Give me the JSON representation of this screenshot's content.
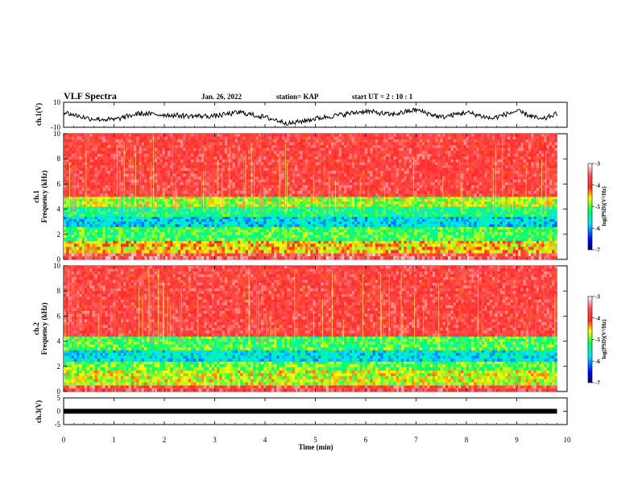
{
  "header": {
    "title": "VLF Spectra",
    "date": "Jan. 26, 2022",
    "station": "station= KAP",
    "start": "start  UT =  2 : 10 : 1"
  },
  "axes": {
    "xlabel": "Time (min)",
    "ch1_label": "ch.1(V)",
    "spec1_label_a": "ch.1",
    "spec1_label_b": "Frequency (kHz)",
    "spec2_label_a": "ch.2",
    "spec2_label_b": "Frequency (kHz)",
    "ch3_label": "ch.3(V)",
    "colorbar_label": "log(PSD)(V²/Hz)"
  },
  "chart_data": [
    {
      "type": "line",
      "name": "ch.1 waveform",
      "ylabel": "ch.1(V)",
      "ylim": [
        -10,
        10
      ],
      "xlim": [
        0,
        10
      ],
      "yticks": [
        "10",
        "-10"
      ],
      "envelope_x": [
        0,
        0.5,
        1,
        1.5,
        2,
        2.5,
        3,
        3.5,
        4,
        4.5,
        5,
        5.5,
        6,
        6.5,
        7,
        7.5,
        8,
        8.5,
        9,
        9.5,
        9.8
      ],
      "envelope_y": [
        2,
        -3,
        -4,
        1,
        0,
        -1,
        -1,
        2,
        -2,
        -7,
        -3,
        0,
        3,
        0,
        4,
        -2,
        2,
        -3,
        3,
        -4,
        1
      ]
    },
    {
      "type": "heatmap",
      "name": "ch.1 spectrogram",
      "ylabel": "Frequency (kHz)",
      "ylim": [
        0,
        10
      ],
      "xlim": [
        0,
        10
      ],
      "yticks": [
        "0",
        "2",
        "4",
        "6",
        "8",
        "10"
      ],
      "bands": [
        {
          "f0": 0.0,
          "f1": 0.5,
          "level": -3.6
        },
        {
          "f0": 0.5,
          "f1": 1.5,
          "level": -4.5
        },
        {
          "f0": 1.5,
          "f1": 2.6,
          "level": -5.1
        },
        {
          "f0": 2.6,
          "f1": 3.4,
          "level": -5.8
        },
        {
          "f0": 3.4,
          "f1": 4.2,
          "level": -5.3
        },
        {
          "f0": 4.2,
          "f1": 5.0,
          "level": -4.8
        },
        {
          "f0": 5.0,
          "f1": 10.0,
          "level": -3.8
        }
      ]
    },
    {
      "type": "heatmap",
      "name": "ch.2 spectrogram",
      "ylabel": "Frequency (kHz)",
      "ylim": [
        0,
        10
      ],
      "xlim": [
        0,
        10
      ],
      "yticks": [
        "0",
        "2",
        "4",
        "6",
        "8",
        "10"
      ],
      "bands": [
        {
          "f0": 0.0,
          "f1": 0.5,
          "level": -3.7
        },
        {
          "f0": 0.5,
          "f1": 1.7,
          "level": -4.7
        },
        {
          "f0": 1.7,
          "f1": 2.4,
          "level": -5.0
        },
        {
          "f0": 2.4,
          "f1": 3.3,
          "level": -5.7
        },
        {
          "f0": 3.3,
          "f1": 4.4,
          "level": -5.1
        },
        {
          "f0": 4.4,
          "f1": 10.0,
          "level": -3.8
        }
      ]
    },
    {
      "type": "line",
      "name": "ch.3 waveform",
      "ylabel": "ch.3(V)",
      "ylim": [
        -5,
        5
      ],
      "xlim": [
        0,
        10
      ],
      "yticks": [
        "5",
        "0",
        "-5"
      ],
      "constant_value": 0,
      "end_time": 9.8
    },
    {
      "type": "colorbar",
      "label": "log(PSD)(V²/Hz)",
      "range": [
        -7,
        -3
      ],
      "ticks": [
        "-3",
        "-4",
        "-5",
        "-6",
        "-7"
      ],
      "colors": [
        "#000066",
        "#0000ff",
        "#00e5ff",
        "#00ff66",
        "#ffff00",
        "#ff2a2a",
        "#ffffff"
      ]
    }
  ],
  "xaxis": {
    "xlim": [
      0,
      10
    ],
    "ticks": [
      "0",
      "1",
      "2",
      "3",
      "4",
      "5",
      "6",
      "7",
      "8",
      "9",
      "10"
    ]
  }
}
